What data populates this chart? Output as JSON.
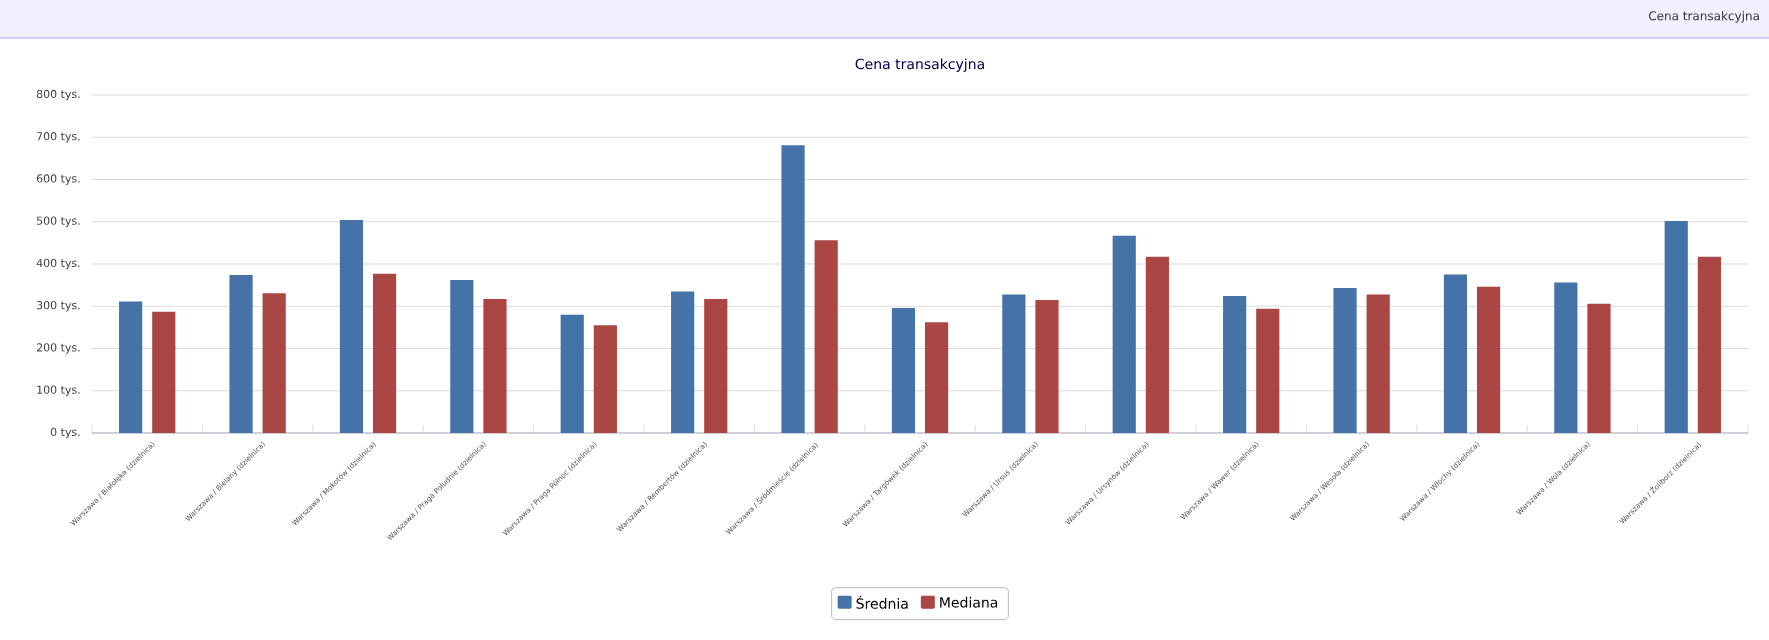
{
  "chart_data": {
    "type": "bar",
    "title": "Cena transakcyjna",
    "annotations": [
      "Cena transakcyjna"
    ],
    "categories": [
      "Warszawa / Białołęka (dzielnica)",
      "Warszawa / Bielany (dzielnica)",
      "Warszawa / Mokotów (dzielnica)",
      "Warszawa / Praga Południe (dzielnica)",
      "Warszawa / Praga Północ (dzielnica)",
      "Warszawa / Rembertów (dzielnica)",
      "Warszawa / Śródmieście (dzielnica)",
      "Warszawa / Targówek (dzielnica)",
      "Warszawa / Ursus (dzielnica)",
      "Warszawa / Ursynów (dzielnica)",
      "Warszawa / Wawer (dzielnica)",
      "Warszawa / Wesoła (dzielnica)",
      "Warszawa / Włochy (dzielnica)",
      "Warszawa / Wola (dzielnica)",
      "Warszawa / Żoliborz (dzielnica)"
    ],
    "series": [
      {
        "name": "Średnia",
        "color": "#4572a7",
        "values": [
          311,
          374,
          504,
          362,
          280,
          335,
          681,
          296,
          328,
          467,
          324,
          343,
          375,
          356,
          502
        ]
      },
      {
        "name": "Mediana",
        "color": "#aa4643",
        "values": [
          287,
          331,
          377,
          317,
          255,
          317,
          456,
          262,
          315,
          417,
          294,
          328,
          346,
          306,
          417
        ]
      }
    ],
    "ylim": [
      0,
      800
    ],
    "yticks": [
      {
        "value": 0,
        "label": "0 tys."
      },
      {
        "value": 100,
        "label": "100 tys."
      },
      {
        "value": 200,
        "label": "200 tys."
      },
      {
        "value": 300,
        "label": "300 tys."
      },
      {
        "value": 400,
        "label": "400 tys."
      },
      {
        "value": 500,
        "label": "500 tys."
      },
      {
        "value": 600,
        "label": "600 tys."
      },
      {
        "value": 700,
        "label": "700 tys."
      },
      {
        "value": 800,
        "label": "800 tys."
      }
    ],
    "grid": "y",
    "legend": "bottom"
  }
}
